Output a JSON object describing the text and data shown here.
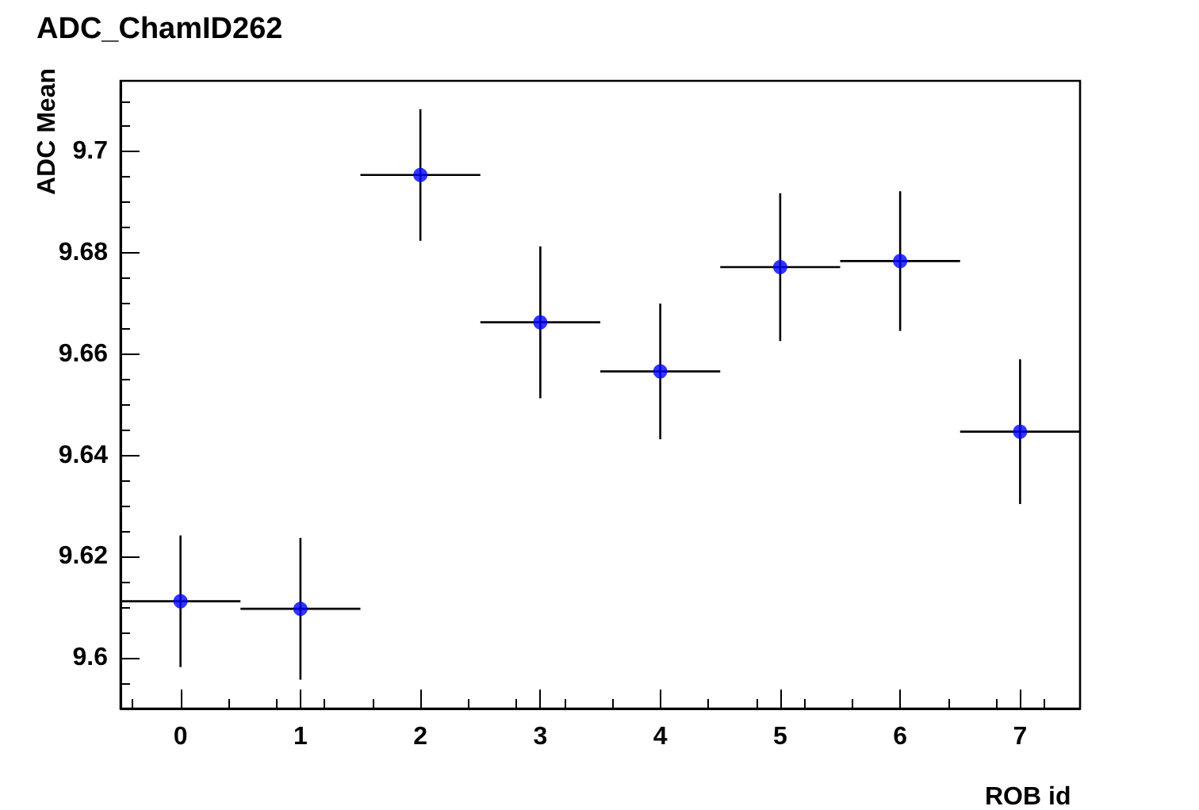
{
  "chart_data": {
    "type": "scatter",
    "title": "ADC_ChamID262",
    "xlabel": "ROB id",
    "ylabel": "ADC Mean",
    "x": [
      0,
      1,
      2,
      3,
      4,
      5,
      6,
      7
    ],
    "series": [
      {
        "color": "#0000ff",
        "values": [
          9.6112,
          9.6097,
          9.6954,
          9.6663,
          9.6566,
          9.6772,
          9.6784,
          9.6447
        ],
        "errors": [
          0.013,
          0.014,
          0.013,
          0.015,
          0.0134,
          0.0146,
          0.0138,
          0.0143
        ],
        "xerrors": [
          0.5,
          0.5,
          0.5,
          0.5,
          0.5,
          0.5,
          0.5,
          0.5
        ]
      }
    ],
    "xlim": [
      -0.5,
      7.5
    ],
    "xticks": [
      0,
      1,
      2,
      3,
      4,
      5,
      6,
      7
    ],
    "ylim": [
      9.59,
      9.714
    ],
    "yticks": [
      9.6,
      9.62,
      9.64,
      9.66,
      9.68,
      9.7
    ],
    "grid": false,
    "marker": "circle"
  }
}
